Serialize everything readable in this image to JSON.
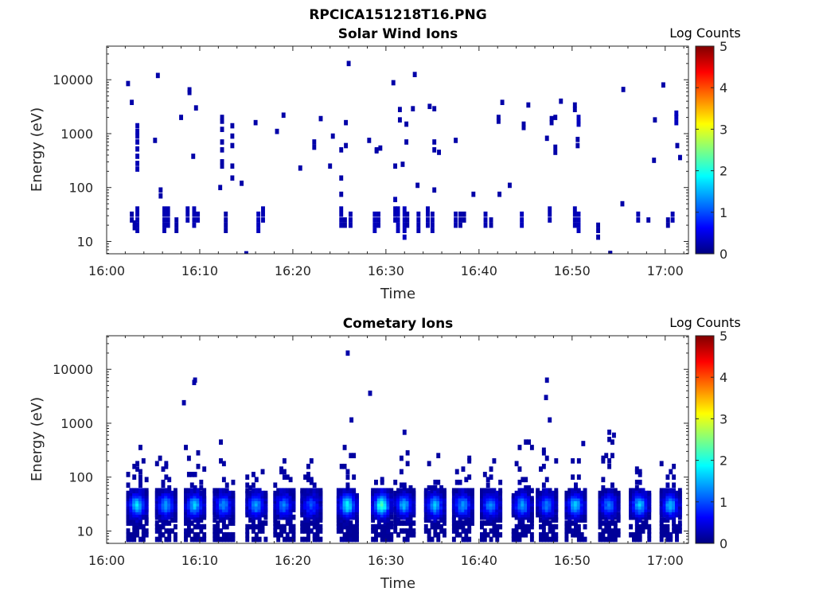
{
  "figure": {
    "title": "RPCICA151218T16.PNG"
  },
  "chart_data": [
    {
      "type": "heatmap",
      "title": "Solar Wind Ions",
      "xlabel": "Time",
      "ylabel": "Energy (eV)",
      "x_ticks": [
        "16:00",
        "16:10",
        "16:20",
        "16:30",
        "16:40",
        "16:50",
        "17:00"
      ],
      "x_range_minutes": [
        0,
        62.5
      ],
      "y_scale": "log",
      "y_ticks": [
        "10",
        "100",
        "1000",
        "10000"
      ],
      "y_range": [
        5.9,
        42000
      ],
      "colorbar": {
        "label": "Log Counts",
        "ticks": [
          "0",
          "1",
          "2",
          "3",
          "4",
          "5"
        ],
        "range": [
          0,
          5
        ],
        "colormap": "jet"
      },
      "columns": [
        {
          "t": 2.7,
          "e": [
            32,
            25
          ],
          "v": 0.2
        },
        {
          "t": 3.0,
          "e": [
            22,
            18
          ],
          "v": 0.2
        },
        {
          "t": 3.3,
          "e": [
            1400,
            1100,
            900,
            700,
            520,
            380,
            280,
            220
          ],
          "v": 0.25
        },
        {
          "t": 3.3,
          "e": [
            40,
            32,
            25,
            20,
            16
          ],
          "v": 0.25
        },
        {
          "t": 2.3,
          "e": [
            8500
          ],
          "v": 0.2
        },
        {
          "t": 2.7,
          "e": [
            3800
          ],
          "v": 0.2
        },
        {
          "t": 5.5,
          "e": [
            12000
          ],
          "v": 0.2
        },
        {
          "t": 5.2,
          "e": [
            750
          ],
          "v": 0.2
        },
        {
          "t": 5.8,
          "e": [
            90,
            70
          ],
          "v": 0.2
        },
        {
          "t": 6.2,
          "e": [
            40,
            32,
            25,
            20,
            16
          ],
          "v": 0.25
        },
        {
          "t": 6.6,
          "e": [
            40,
            32,
            25,
            20
          ],
          "v": 0.25
        },
        {
          "t": 7.5,
          "e": [
            25,
            20,
            16
          ],
          "v": 0.2
        },
        {
          "t": 8.0,
          "e": [
            2000
          ],
          "v": 0.2
        },
        {
          "t": 8.9,
          "e": [
            5800,
            6500
          ],
          "v": 0.2
        },
        {
          "t": 9.6,
          "e": [
            3000
          ],
          "v": 0.2
        },
        {
          "t": 9.3,
          "e": [
            380
          ],
          "v": 0.2
        },
        {
          "t": 8.7,
          "e": [
            40,
            32,
            25
          ],
          "v": 0.25
        },
        {
          "t": 9.4,
          "e": [
            40,
            32,
            25,
            20
          ],
          "v": 0.25
        },
        {
          "t": 9.8,
          "e": [
            32,
            25
          ],
          "v": 0.25
        },
        {
          "t": 12.4,
          "e": [
            2000,
            1700,
            1200,
            700,
            500,
            300,
            250
          ],
          "v": 0.2
        },
        {
          "t": 13.5,
          "e": [
            1400,
            900,
            600,
            250,
            150
          ],
          "v": 0.2
        },
        {
          "t": 12.2,
          "e": [
            100
          ],
          "v": 0.2
        },
        {
          "t": 12.8,
          "e": [
            32,
            25,
            20,
            16
          ],
          "v": 0.2
        },
        {
          "t": 14.5,
          "e": [
            120
          ],
          "v": 0.2
        },
        {
          "t": 16.0,
          "e": [
            1600
          ],
          "v": 0.2
        },
        {
          "t": 16.3,
          "e": [
            32,
            25,
            20,
            16
          ],
          "v": 0.3
        },
        {
          "t": 16.8,
          "e": [
            40,
            32,
            25
          ],
          "v": 0.25
        },
        {
          "t": 18.3,
          "e": [
            1100
          ],
          "v": 0.2
        },
        {
          "t": 19.0,
          "e": [
            2200
          ],
          "v": 0.2
        },
        {
          "t": 20.8,
          "e": [
            230
          ],
          "v": 0.2
        },
        {
          "t": 22.3,
          "e": [
            560,
            700
          ],
          "v": 0.2
        },
        {
          "t": 23.0,
          "e": [
            1900
          ],
          "v": 0.2
        },
        {
          "t": 24.3,
          "e": [
            900
          ],
          "v": 0.2
        },
        {
          "t": 24.0,
          "e": [
            250
          ],
          "v": 0.2
        },
        {
          "t": 25.2,
          "e": [
            500,
            150,
            75
          ],
          "v": 0.2
        },
        {
          "t": 25.7,
          "e": [
            1600,
            600
          ],
          "v": 0.2
        },
        {
          "t": 26.0,
          "e": [
            20000
          ],
          "v": 0.2
        },
        {
          "t": 25.2,
          "e": [
            40,
            32,
            25,
            20
          ],
          "v": 0.25
        },
        {
          "t": 25.6,
          "e": [
            25,
            20
          ],
          "v": 0.2
        },
        {
          "t": 26.2,
          "e": [
            32,
            25,
            20
          ],
          "v": 0.25
        },
        {
          "t": 28.2,
          "e": [
            750
          ],
          "v": 0.2
        },
        {
          "t": 29.0,
          "e": [
            480,
            500
          ],
          "v": 0.2
        },
        {
          "t": 29.4,
          "e": [
            540
          ],
          "v": 0.2
        },
        {
          "t": 28.8,
          "e": [
            32,
            25,
            20,
            16
          ],
          "v": 0.3
        },
        {
          "t": 29.2,
          "e": [
            32,
            25,
            20
          ],
          "v": 0.25
        },
        {
          "t": 30.8,
          "e": [
            8800
          ],
          "v": 0.2
        },
        {
          "t": 31.0,
          "e": [
            250
          ],
          "v": 0.2
        },
        {
          "t": 31.5,
          "e": [
            2800,
            1800
          ],
          "v": 0.2
        },
        {
          "t": 31.8,
          "e": [
            270
          ],
          "v": 0.2
        },
        {
          "t": 32.2,
          "e": [
            1500,
            700
          ],
          "v": 0.2
        },
        {
          "t": 33.1,
          "e": [
            12500
          ],
          "v": 0.2
        },
        {
          "t": 32.9,
          "e": [
            2900
          ],
          "v": 0.2
        },
        {
          "t": 33.4,
          "e": [
            110
          ],
          "v": 0.2
        },
        {
          "t": 31.0,
          "e": [
            60,
            40,
            32,
            25
          ],
          "v": 0.25
        },
        {
          "t": 31.3,
          "e": [
            40,
            32,
            25,
            20,
            16
          ],
          "v": 0.3
        },
        {
          "t": 32.0,
          "e": [
            40,
            32,
            25,
            20,
            16,
            12
          ],
          "v": 0.3
        },
        {
          "t": 32.3,
          "e": [
            32,
            25,
            20
          ],
          "v": 0.2
        },
        {
          "t": 33.5,
          "e": [
            32,
            25,
            20,
            16
          ],
          "v": 0.25
        },
        {
          "t": 34.7,
          "e": [
            3200
          ],
          "v": 0.2
        },
        {
          "t": 35.2,
          "e": [
            2900,
            700,
            500
          ],
          "v": 0.2
        },
        {
          "t": 35.7,
          "e": [
            450
          ],
          "v": 0.2
        },
        {
          "t": 34.5,
          "e": [
            40,
            32,
            25,
            20
          ],
          "v": 0.25
        },
        {
          "t": 35.0,
          "e": [
            32,
            25,
            20,
            16
          ],
          "v": 0.25
        },
        {
          "t": 35.2,
          "e": [
            90
          ],
          "v": 0.2
        },
        {
          "t": 37.5,
          "e": [
            750
          ],
          "v": 0.2
        },
        {
          "t": 37.5,
          "e": [
            32,
            25,
            20
          ],
          "v": 0.25
        },
        {
          "t": 38.0,
          "e": [
            32,
            25,
            20
          ],
          "v": 0.2
        },
        {
          "t": 38.4,
          "e": [
            32,
            25
          ],
          "v": 0.2
        },
        {
          "t": 39.4,
          "e": [
            75
          ],
          "v": 0.2
        },
        {
          "t": 40.7,
          "e": [
            32,
            25,
            20
          ],
          "v": 0.25
        },
        {
          "t": 41.3,
          "e": [
            25,
            20
          ],
          "v": 0.2
        },
        {
          "t": 42.1,
          "e": [
            2000,
            1700
          ],
          "v": 0.2
        },
        {
          "t": 42.5,
          "e": [
            3800
          ],
          "v": 0.2
        },
        {
          "t": 42.2,
          "e": [
            75
          ],
          "v": 0.2
        },
        {
          "t": 43.3,
          "e": [
            110
          ],
          "v": 0.2
        },
        {
          "t": 44.8,
          "e": [
            1500,
            1300
          ],
          "v": 0.2
        },
        {
          "t": 45.3,
          "e": [
            3400
          ],
          "v": 0.2
        },
        {
          "t": 44.6,
          "e": [
            32,
            25,
            20
          ],
          "v": 0.3
        },
        {
          "t": 47.3,
          "e": [
            820
          ],
          "v": 0.2
        },
        {
          "t": 47.8,
          "e": [
            1900,
            1600
          ],
          "v": 0.2
        },
        {
          "t": 48.2,
          "e": [
            2000,
            560,
            450
          ],
          "v": 0.2
        },
        {
          "t": 48.8,
          "e": [
            4000
          ],
          "v": 0.2
        },
        {
          "t": 47.6,
          "e": [
            40,
            32,
            25
          ],
          "v": 0.25
        },
        {
          "t": 50.3,
          "e": [
            3400,
            2800
          ],
          "v": 0.2
        },
        {
          "t": 50.7,
          "e": [
            2000,
            1700,
            1500
          ],
          "v": 0.3
        },
        {
          "t": 50.6,
          "e": [
            780,
            600
          ],
          "v": 0.2
        },
        {
          "t": 50.3,
          "e": [
            40,
            32,
            25,
            20
          ],
          "v": 0.25
        },
        {
          "t": 50.7,
          "e": [
            32,
            25,
            20,
            16
          ],
          "v": 0.3
        },
        {
          "t": 52.8,
          "e": [
            20,
            16,
            12
          ],
          "v": 0.2
        },
        {
          "t": 54.1,
          "e": [
            6,
            5.9
          ],
          "v": 0.2
        },
        {
          "t": 55.5,
          "e": [
            6600
          ],
          "v": 0.2
        },
        {
          "t": 55.4,
          "e": [
            50
          ],
          "v": 0.2
        },
        {
          "t": 57.1,
          "e": [
            32,
            25
          ],
          "v": 0.25
        },
        {
          "t": 58.2,
          "e": [
            25
          ],
          "v": 0.2
        },
        {
          "t": 58.9,
          "e": [
            1800
          ],
          "v": 0.2
        },
        {
          "t": 58.8,
          "e": [
            320
          ],
          "v": 0.2
        },
        {
          "t": 59.8,
          "e": [
            8000
          ],
          "v": 0.2
        },
        {
          "t": 60.3,
          "e": [
            25,
            20
          ],
          "v": 0.2
        },
        {
          "t": 60.8,
          "e": [
            32,
            25
          ],
          "v": 0.25
        },
        {
          "t": 61.2,
          "e": [
            2400,
            2000,
            1600
          ],
          "v": 0.3
        },
        {
          "t": 61.3,
          "e": [
            600
          ],
          "v": 0.2
        },
        {
          "t": 61.6,
          "e": [
            360
          ],
          "v": 0.2
        },
        {
          "t": 15.0,
          "e": [
            5.9
          ],
          "v": 0.2
        }
      ]
    },
    {
      "type": "heatmap",
      "title": "Cometary Ions",
      "xlabel": "Time",
      "ylabel": "Energy (eV)",
      "x_ticks": [
        "16:00",
        "16:10",
        "16:20",
        "16:30",
        "16:40",
        "16:50",
        "17:00"
      ],
      "x_range_minutes": [
        0,
        62.5
      ],
      "y_scale": "log",
      "y_ticks": [
        "10",
        "100",
        "1000",
        "10000"
      ],
      "y_range": [
        5.9,
        42000
      ],
      "colorbar": {
        "label": "Log Counts",
        "ticks": [
          "0",
          "1",
          "2",
          "3",
          "4",
          "5"
        ],
        "range": [
          0,
          5
        ],
        "colormap": "jet"
      },
      "bursts": [
        {
          "t": 3.3,
          "top": 550,
          "peak": 1.6
        },
        {
          "t": 6.4,
          "top": 230,
          "peak": 1.3
        },
        {
          "t": 9.5,
          "top": 6300,
          "peak": 1.5
        },
        {
          "t": 12.6,
          "top": 480,
          "peak": 1.2
        },
        {
          "t": 16.1,
          "top": 160,
          "peak": 1.3
        },
        {
          "t": 19.1,
          "top": 220,
          "peak": 1.1
        },
        {
          "t": 22.0,
          "top": 200,
          "peak": 0.9
        },
        {
          "t": 25.9,
          "top": 20000,
          "peak": 1.8
        },
        {
          "t": 29.6,
          "top": 180,
          "peak": 2.1
        },
        {
          "t": 32.0,
          "top": 680,
          "peak": 1.4
        },
        {
          "t": 35.3,
          "top": 260,
          "peak": 1.5
        },
        {
          "t": 38.3,
          "top": 260,
          "peak": 1.3
        },
        {
          "t": 41.3,
          "top": 200,
          "peak": 1.2
        },
        {
          "t": 44.7,
          "top": 550,
          "peak": 1.3
        },
        {
          "t": 47.3,
          "top": 6300,
          "peak": 1.1
        },
        {
          "t": 50.4,
          "top": 230,
          "peak": 1.5
        },
        {
          "t": 54.0,
          "top": 680,
          "peak": 1.1
        },
        {
          "t": 57.3,
          "top": 230,
          "peak": 1.5
        },
        {
          "t": 60.6,
          "top": 350,
          "peak": 1.4
        }
      ],
      "sparse": [
        {
          "t": 8.3,
          "e": 2400
        },
        {
          "t": 9.4,
          "e": 5700
        },
        {
          "t": 28.3,
          "e": 3600
        },
        {
          "t": 26.3,
          "e": 1150
        },
        {
          "t": 47.2,
          "e": 3000
        },
        {
          "t": 47.6,
          "e": 1150
        },
        {
          "t": 51.2,
          "e": 420
        },
        {
          "t": 54.5,
          "e": 600
        }
      ]
    }
  ]
}
